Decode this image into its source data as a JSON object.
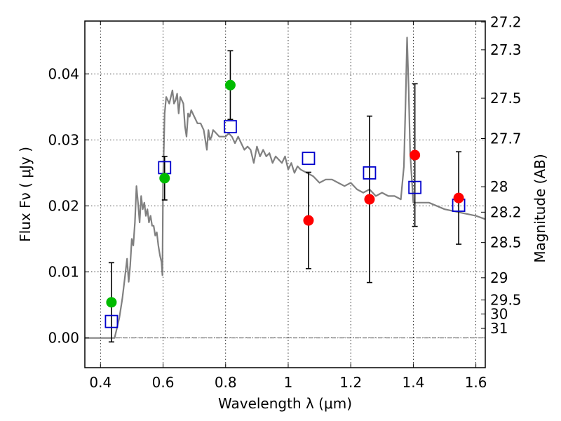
{
  "chart_data": {
    "type": "scatter",
    "xlabel": "Wavelength  λ (μm)",
    "ylabel": "Flux  Fν  ( μJy )",
    "y2label": "Magnitude (AB)",
    "xlim": [
      0.35,
      1.63
    ],
    "ylim": [
      -0.0045,
      0.048
    ],
    "grid": true,
    "x_ticks": [
      {
        "v": 0.4,
        "label": "0.4"
      },
      {
        "v": 0.6,
        "label": "0.6"
      },
      {
        "v": 0.8,
        "label": "0.8"
      },
      {
        "v": 1.0,
        "label": "1"
      },
      {
        "v": 1.2,
        "label": "1.2"
      },
      {
        "v": 1.4,
        "label": "1.4"
      },
      {
        "v": 1.6,
        "label": "1.6"
      }
    ],
    "y_ticks": [
      {
        "v": 0.0,
        "label": "0.00"
      },
      {
        "v": 0.01,
        "label": "0.01"
      },
      {
        "v": 0.02,
        "label": "0.02"
      },
      {
        "v": 0.03,
        "label": "0.03"
      },
      {
        "v": 0.04,
        "label": "0.04"
      }
    ],
    "mag_ticks": [
      {
        "mag": 27.2,
        "label": "27.2"
      },
      {
        "mag": 27.3,
        "label": "27.3"
      },
      {
        "mag": 27.5,
        "label": "27.5"
      },
      {
        "mag": 27.7,
        "label": "27.7"
      },
      {
        "mag": 28,
        "label": "28"
      },
      {
        "mag": 28.2,
        "label": "28.2"
      },
      {
        "mag": 28.5,
        "label": "28.5"
      },
      {
        "mag": 29,
        "label": "29"
      },
      {
        "mag": 29.5,
        "label": "29.5"
      },
      {
        "mag": 30,
        "label": "30"
      },
      {
        "mag": 31,
        "label": "31"
      }
    ],
    "colors": {
      "model": "#808080",
      "model_boxes": "#0000cc",
      "detections": "#00bb00",
      "nondetections": "#ff0000",
      "errorbars": "#000000"
    },
    "series": [
      {
        "kind": "line",
        "x": [
          0.35,
          0.44,
          0.445,
          0.46,
          0.47,
          0.48,
          0.485,
          0.49,
          0.495,
          0.5,
          0.505,
          0.51,
          0.515,
          0.52,
          0.525,
          0.53,
          0.535,
          0.54,
          0.545,
          0.55,
          0.555,
          0.56,
          0.565,
          0.57,
          0.575,
          0.58,
          0.585,
          0.59,
          0.595,
          0.598,
          0.6,
          0.605,
          0.61,
          0.615,
          0.62,
          0.63,
          0.635,
          0.64,
          0.645,
          0.65,
          0.655,
          0.66,
          0.665,
          0.67,
          0.675,
          0.68,
          0.685,
          0.69,
          0.7,
          0.71,
          0.72,
          0.73,
          0.74,
          0.745,
          0.75,
          0.755,
          0.76,
          0.77,
          0.78,
          0.79,
          0.8,
          0.81,
          0.82,
          0.83,
          0.84,
          0.85,
          0.86,
          0.87,
          0.88,
          0.89,
          0.9,
          0.91,
          0.92,
          0.93,
          0.94,
          0.95,
          0.96,
          0.97,
          0.98,
          0.99,
          1.0,
          1.01,
          1.02,
          1.03,
          1.04,
          1.06,
          1.08,
          1.1,
          1.12,
          1.14,
          1.16,
          1.18,
          1.2,
          1.22,
          1.24,
          1.26,
          1.28,
          1.3,
          1.32,
          1.34,
          1.36,
          1.37,
          1.375,
          1.38,
          1.385,
          1.39,
          1.4,
          1.45,
          1.5,
          1.55,
          1.6,
          1.63
        ],
        "y": [
          0.0,
          0.0,
          0.0,
          0.003,
          0.006,
          0.01,
          0.012,
          0.0085,
          0.011,
          0.015,
          0.014,
          0.0175,
          0.023,
          0.0205,
          0.0175,
          0.0215,
          0.0195,
          0.0205,
          0.0185,
          0.0195,
          0.0175,
          0.0185,
          0.017,
          0.017,
          0.0155,
          0.016,
          0.014,
          0.0125,
          0.0115,
          0.0095,
          0.0235,
          0.034,
          0.0365,
          0.036,
          0.0355,
          0.0375,
          0.0355,
          0.036,
          0.037,
          0.034,
          0.0365,
          0.036,
          0.0355,
          0.032,
          0.0305,
          0.034,
          0.0335,
          0.0345,
          0.0335,
          0.0325,
          0.0325,
          0.0315,
          0.0285,
          0.0315,
          0.03,
          0.0305,
          0.0315,
          0.031,
          0.0305,
          0.0305,
          0.0305,
          0.031,
          0.0305,
          0.0295,
          0.0305,
          0.0295,
          0.0285,
          0.029,
          0.0285,
          0.0265,
          0.029,
          0.0275,
          0.0285,
          0.0275,
          0.028,
          0.0265,
          0.0275,
          0.027,
          0.0265,
          0.0275,
          0.0255,
          0.0265,
          0.025,
          0.026,
          0.0255,
          0.025,
          0.0245,
          0.0235,
          0.024,
          0.024,
          0.0235,
          0.023,
          0.0235,
          0.0225,
          0.022,
          0.0225,
          0.0215,
          0.022,
          0.0215,
          0.0215,
          0.021,
          0.026,
          0.035,
          0.0455,
          0.038,
          0.028,
          0.0205,
          0.0205,
          0.0195,
          0.019,
          0.0185,
          0.018
        ]
      },
      {
        "kind": "model-photometry",
        "x": [
          0.435,
          0.605,
          0.815,
          1.065,
          1.26,
          1.405,
          1.545
        ],
        "y": [
          0.0025,
          0.0258,
          0.032,
          0.0272,
          0.025,
          0.0228,
          0.0201
        ]
      },
      {
        "kind": "detections",
        "x": [
          0.435,
          0.605,
          0.815
        ],
        "y": [
          0.0054,
          0.0242,
          0.0383
        ],
        "err": [
          0.006,
          0.0033,
          0.0052
        ]
      },
      {
        "kind": "nondetections",
        "x": [
          1.065,
          1.26,
          1.405,
          1.545
        ],
        "y": [
          0.0178,
          0.021,
          0.0277,
          0.0212
        ],
        "err": [
          0.0073,
          0.0126,
          0.0108,
          0.007
        ]
      }
    ]
  }
}
